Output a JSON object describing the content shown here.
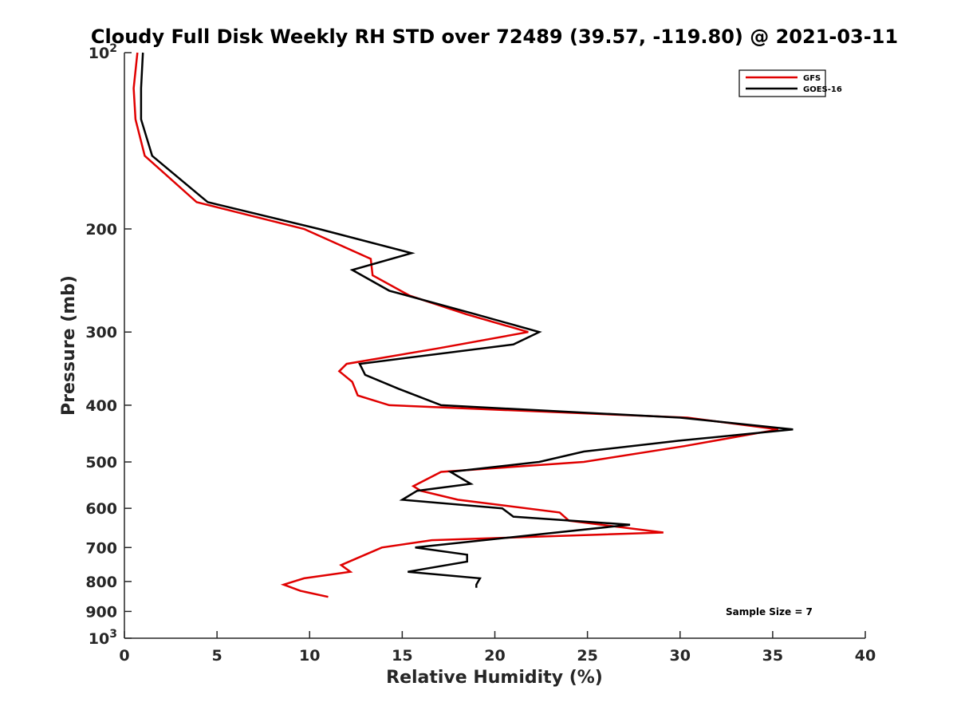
{
  "chart_data": {
    "type": "line",
    "title": "Cloudy Full Disk Weekly RH STD over 72489 (39.57, -119.80) @ 2021-03-11",
    "xlabel": "Relative Humidity (%)",
    "ylabel": "Pressure (mb)",
    "xlim": [
      0,
      40
    ],
    "ylim": [
      100,
      1000
    ],
    "y_scale": "log",
    "y_reversed": true,
    "grid": false,
    "legend_position": "top-right",
    "x_ticks": [
      0,
      5,
      10,
      15,
      20,
      25,
      30,
      35,
      40
    ],
    "y_ticks": [
      {
        "value": 100,
        "base": "10",
        "exp": "2"
      },
      {
        "value": 200,
        "label": "200"
      },
      {
        "value": 300,
        "label": "300"
      },
      {
        "value": 400,
        "label": "400"
      },
      {
        "value": 500,
        "label": "500"
      },
      {
        "value": 600,
        "label": "600"
      },
      {
        "value": 700,
        "label": "700"
      },
      {
        "value": 800,
        "label": "800"
      },
      {
        "value": 900,
        "label": "900"
      },
      {
        "value": 1000,
        "base": "10",
        "exp": "3"
      }
    ],
    "annotation": "Sample Size = 7",
    "series": [
      {
        "name": "GFS",
        "color": "#e00000",
        "points": [
          [
            0.7,
            100
          ],
          [
            0.5,
            115
          ],
          [
            0.6,
            130
          ],
          [
            1.1,
            150
          ],
          [
            3.9,
            180
          ],
          [
            9.7,
            200
          ],
          [
            13.3,
            225
          ],
          [
            13.4,
            240
          ],
          [
            15.4,
            260
          ],
          [
            18.5,
            280
          ],
          [
            21.8,
            300
          ],
          [
            16.9,
            320
          ],
          [
            12.0,
            340
          ],
          [
            11.6,
            350
          ],
          [
            12.3,
            365
          ],
          [
            12.6,
            385
          ],
          [
            14.3,
            400
          ],
          [
            30.4,
            420
          ],
          [
            35.3,
            440
          ],
          [
            30.2,
            470
          ],
          [
            24.8,
            500
          ],
          [
            17.1,
            520
          ],
          [
            15.6,
            550
          ],
          [
            16.0,
            560
          ],
          [
            18.0,
            580
          ],
          [
            23.5,
            610
          ],
          [
            24.0,
            630
          ],
          [
            29.1,
            660
          ],
          [
            16.6,
            680
          ],
          [
            13.9,
            700
          ],
          [
            13.0,
            720
          ],
          [
            11.7,
            750
          ],
          [
            12.2,
            770
          ],
          [
            9.7,
            790
          ],
          [
            8.6,
            810
          ],
          [
            9.5,
            830
          ],
          [
            11.0,
            850
          ]
        ]
      },
      {
        "name": "GOES-16",
        "color": "#000000",
        "points": [
          [
            1.0,
            100
          ],
          [
            0.9,
            115
          ],
          [
            0.9,
            130
          ],
          [
            1.5,
            150
          ],
          [
            4.5,
            180
          ],
          [
            10.5,
            200
          ],
          [
            15.5,
            220
          ],
          [
            12.3,
            235
          ],
          [
            14.3,
            255
          ],
          [
            19.0,
            280
          ],
          [
            22.4,
            300
          ],
          [
            21.0,
            315
          ],
          [
            12.7,
            340
          ],
          [
            13.0,
            355
          ],
          [
            14.8,
            375
          ],
          [
            17.1,
            400
          ],
          [
            30.0,
            420
          ],
          [
            36.1,
            440
          ],
          [
            29.9,
            460
          ],
          [
            24.8,
            480
          ],
          [
            22.4,
            500
          ],
          [
            17.6,
            520
          ],
          [
            18.7,
            545
          ],
          [
            15.8,
            560
          ],
          [
            15.0,
            580
          ],
          [
            20.4,
            600
          ],
          [
            21.0,
            620
          ],
          [
            27.3,
            640
          ],
          [
            15.7,
            700
          ],
          [
            18.5,
            720
          ],
          [
            18.5,
            740
          ],
          [
            15.3,
            770
          ],
          [
            19.2,
            790
          ],
          [
            19.0,
            810
          ],
          [
            19.0,
            820
          ]
        ]
      }
    ]
  }
}
